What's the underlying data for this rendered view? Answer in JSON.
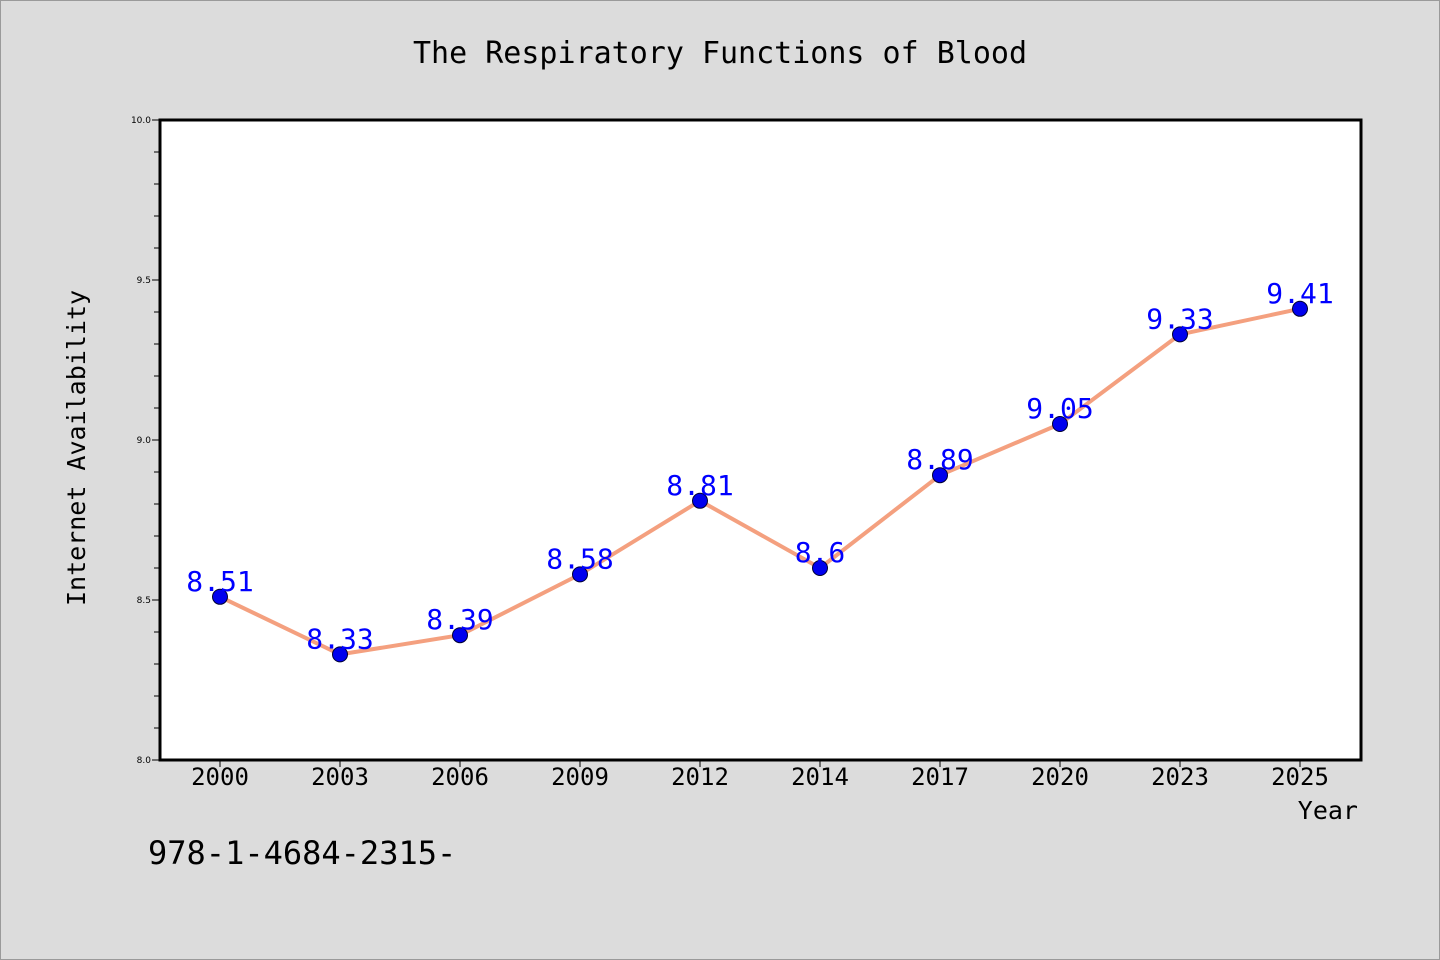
{
  "chart_data": {
    "type": "line",
    "title": "The Respiratory Functions of Blood",
    "xlabel": "Year",
    "ylabel": "Internet Availability",
    "categories": [
      "2000",
      "2003",
      "2006",
      "2009",
      "2012",
      "2014",
      "2017",
      "2020",
      "2023",
      "2025"
    ],
    "series": [
      {
        "values": [
          8.51,
          8.33,
          8.39,
          8.58,
          8.81,
          8.6,
          8.89,
          9.05,
          9.33,
          9.41
        ],
        "line_color": "#f4a07f",
        "marker_color": "#0000ee"
      }
    ],
    "data_labels": [
      "8.51",
      "8.33",
      "8.39",
      "8.58",
      "8.81",
      "8.6",
      "8.89",
      "9.05",
      "9.33",
      "9.41"
    ],
    "ylim": [
      8.0,
      10.0
    ],
    "yticks": [
      "8.0",
      "8.5",
      "9.0",
      "9.5",
      "10.0"
    ],
    "grid": false,
    "background_color": "#dcdcdc",
    "plot_background_color": "#ffffff",
    "label_color": "#0000ff"
  },
  "footnote": "978-1-4684-2315-"
}
